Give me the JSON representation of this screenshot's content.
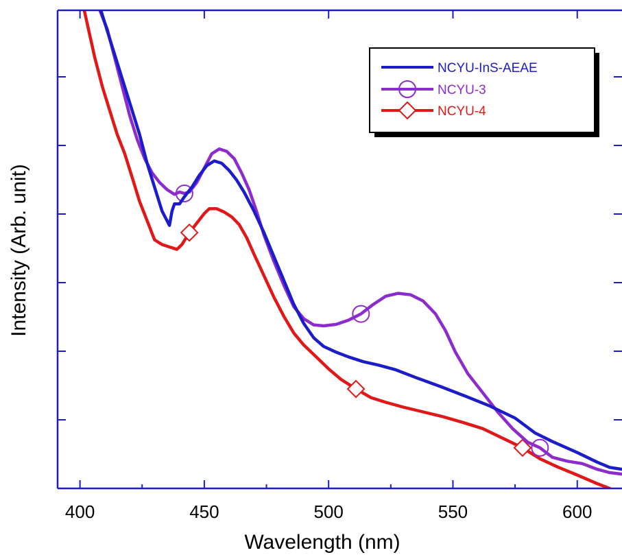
{
  "chart_data": {
    "type": "line",
    "title": "",
    "xlabel": "Wavelength (nm)",
    "ylabel": "Intensity (Arb. unit)",
    "xlim": [
      391,
      618
    ],
    "ylim": [
      0,
      1
    ],
    "x_ticks": [
      "400",
      "450",
      "500",
      "550",
      "600"
    ],
    "x_tick_values": [
      400,
      450,
      500,
      550,
      600
    ],
    "y_tick_labels_shown": false,
    "grid": false,
    "legend_position": "top-right",
    "series": [
      {
        "name": "NCYU-InS-AEAE",
        "color": "#1c1cc8",
        "marker": "none",
        "points": [
          [
            406,
            1.04
          ],
          [
            409,
            0.99
          ],
          [
            412,
            0.94
          ],
          [
            415,
            0.89
          ],
          [
            418,
            0.84
          ],
          [
            421,
            0.79
          ],
          [
            424,
            0.74
          ],
          [
            427,
            0.68
          ],
          [
            430,
            0.63
          ],
          [
            433,
            0.58
          ],
          [
            436,
            0.55
          ],
          [
            437,
            0.58
          ],
          [
            438,
            0.595
          ],
          [
            440,
            0.595
          ],
          [
            442,
            0.61
          ],
          [
            445,
            0.63
          ],
          [
            448,
            0.655
          ],
          [
            451,
            0.675
          ],
          [
            454,
            0.685
          ],
          [
            457,
            0.68
          ],
          [
            460,
            0.665
          ],
          [
            463,
            0.645
          ],
          [
            466,
            0.62
          ],
          [
            470,
            0.58
          ],
          [
            474,
            0.535
          ],
          [
            478,
            0.485
          ],
          [
            482,
            0.435
          ],
          [
            486,
            0.385
          ],
          [
            490,
            0.345
          ],
          [
            494,
            0.315
          ],
          [
            498,
            0.297
          ],
          [
            503,
            0.285
          ],
          [
            508,
            0.275
          ],
          [
            514,
            0.265
          ],
          [
            520,
            0.258
          ],
          [
            527,
            0.248
          ],
          [
            535,
            0.232
          ],
          [
            545,
            0.213
          ],
          [
            555,
            0.193
          ],
          [
            565,
            0.172
          ],
          [
            575,
            0.147
          ],
          [
            583,
            0.116
          ],
          [
            590,
            0.098
          ],
          [
            600,
            0.075
          ],
          [
            608,
            0.055
          ],
          [
            613,
            0.044
          ],
          [
            618,
            0.04
          ]
        ]
      },
      {
        "name": "NCYU-3",
        "color": "#8c2ccc",
        "marker": "circle",
        "marker_x": [
          442,
          513,
          585
        ],
        "points": [
          [
            408,
            1.0
          ],
          [
            411,
            0.96
          ],
          [
            414,
            0.9
          ],
          [
            417,
            0.84
          ],
          [
            420,
            0.78
          ],
          [
            423,
            0.73
          ],
          [
            426,
            0.69
          ],
          [
            429,
            0.66
          ],
          [
            432,
            0.64
          ],
          [
            435,
            0.625
          ],
          [
            438,
            0.615
          ],
          [
            440,
            0.62
          ],
          [
            442,
            0.617
          ],
          [
            444,
            0.62
          ],
          [
            447,
            0.64
          ],
          [
            450,
            0.67
          ],
          [
            453,
            0.7
          ],
          [
            456,
            0.71
          ],
          [
            459,
            0.705
          ],
          [
            462,
            0.69
          ],
          [
            465,
            0.66
          ],
          [
            468,
            0.625
          ],
          [
            471,
            0.58
          ],
          [
            474,
            0.53
          ],
          [
            478,
            0.475
          ],
          [
            482,
            0.425
          ],
          [
            486,
            0.38
          ],
          [
            490,
            0.355
          ],
          [
            494,
            0.342
          ],
          [
            498,
            0.34
          ],
          [
            503,
            0.343
          ],
          [
            508,
            0.352
          ],
          [
            513,
            0.365
          ],
          [
            518,
            0.385
          ],
          [
            523,
            0.402
          ],
          [
            528,
            0.408
          ],
          [
            533,
            0.405
          ],
          [
            538,
            0.392
          ],
          [
            543,
            0.365
          ],
          [
            547,
            0.33
          ],
          [
            551,
            0.285
          ],
          [
            556,
            0.24
          ],
          [
            562,
            0.2
          ],
          [
            568,
            0.16
          ],
          [
            574,
            0.125
          ],
          [
            580,
            0.097
          ],
          [
            585,
            0.085
          ],
          [
            590,
            0.065
          ],
          [
            596,
            0.057
          ],
          [
            602,
            0.052
          ],
          [
            608,
            0.04
          ],
          [
            613,
            0.033
          ],
          [
            618,
            0.03
          ]
        ]
      },
      {
        "name": "NCYU-4",
        "color": "#e01818",
        "marker": "diamond",
        "marker_x": [
          444,
          511,
          578
        ],
        "points": [
          [
            400,
            1.04
          ],
          [
            403,
            0.97
          ],
          [
            406,
            0.9
          ],
          [
            409,
            0.84
          ],
          [
            412,
            0.79
          ],
          [
            415,
            0.74
          ],
          [
            418,
            0.7
          ],
          [
            421,
            0.65
          ],
          [
            424,
            0.6
          ],
          [
            427,
            0.56
          ],
          [
            430,
            0.52
          ],
          [
            433,
            0.51
          ],
          [
            436,
            0.505
          ],
          [
            439,
            0.5
          ],
          [
            441,
            0.51
          ],
          [
            444,
            0.535
          ],
          [
            447,
            0.555
          ],
          [
            450,
            0.575
          ],
          [
            452,
            0.585
          ],
          [
            455,
            0.585
          ],
          [
            458,
            0.578
          ],
          [
            461,
            0.568
          ],
          [
            464,
            0.552
          ],
          [
            467,
            0.525
          ],
          [
            470,
            0.49
          ],
          [
            474,
            0.445
          ],
          [
            478,
            0.4
          ],
          [
            482,
            0.36
          ],
          [
            486,
            0.325
          ],
          [
            490,
            0.3
          ],
          [
            495,
            0.275
          ],
          [
            500,
            0.25
          ],
          [
            505,
            0.228
          ],
          [
            511,
            0.208
          ],
          [
            517,
            0.19
          ],
          [
            523,
            0.18
          ],
          [
            530,
            0.17
          ],
          [
            538,
            0.16
          ],
          [
            546,
            0.15
          ],
          [
            554,
            0.138
          ],
          [
            562,
            0.125
          ],
          [
            570,
            0.105
          ],
          [
            578,
            0.085
          ],
          [
            585,
            0.062
          ],
          [
            592,
            0.045
          ],
          [
            600,
            0.028
          ],
          [
            608,
            0.01
          ],
          [
            613,
            0.0
          ]
        ]
      }
    ]
  }
}
